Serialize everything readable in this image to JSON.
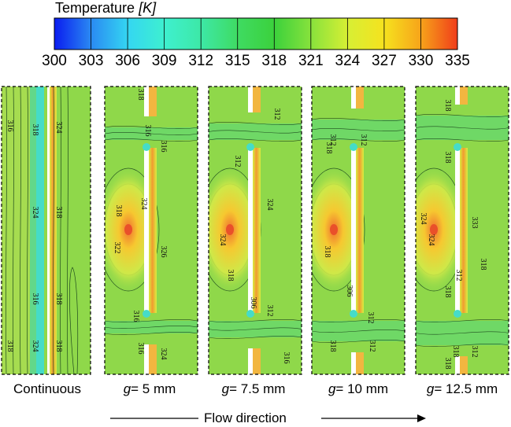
{
  "legend": {
    "title": "Temperature",
    "unit": "[K]",
    "ticks": [
      "300",
      "303",
      "306",
      "309",
      "312",
      "315",
      "318",
      "321",
      "324",
      "327",
      "330",
      "335"
    ],
    "colors": [
      "#0a1cf0",
      "#2a8af2",
      "#34d6f2",
      "#3ef0cf",
      "#3de8a6",
      "#3fdb62",
      "#3bd13c",
      "#88e23c",
      "#d7ef34",
      "#f6e21e",
      "#f7a31a",
      "#f03c1a"
    ]
  },
  "panels": [
    {
      "prefix": "",
      "label": "Continuous",
      "contours": [
        "316",
        "318",
        "324",
        "318",
        "324",
        "318",
        "324",
        "318",
        "316",
        "318"
      ]
    },
    {
      "prefix": "g",
      "label": "= 5 mm",
      "contours": [
        "318",
        "316",
        "316",
        "322",
        "324",
        "318",
        "326",
        "316",
        "316",
        "324"
      ]
    },
    {
      "prefix": "g",
      "label": "= 7.5 mm",
      "contours": [
        "312",
        "312",
        "324",
        "318",
        "324",
        "306",
        "312",
        "316"
      ]
    },
    {
      "prefix": "g",
      "label": "= 10 mm",
      "contours": [
        "312",
        "318",
        "312",
        "318",
        "318",
        "306",
        "312",
        "312"
      ]
    },
    {
      "prefix": "g",
      "label": "= 12.5 mm",
      "contours": [
        "318",
        "318",
        "324",
        "324",
        "318",
        "318",
        "312",
        "318",
        "318",
        "312",
        "333"
      ]
    }
  ],
  "flow": {
    "label": "Flow direction"
  }
}
